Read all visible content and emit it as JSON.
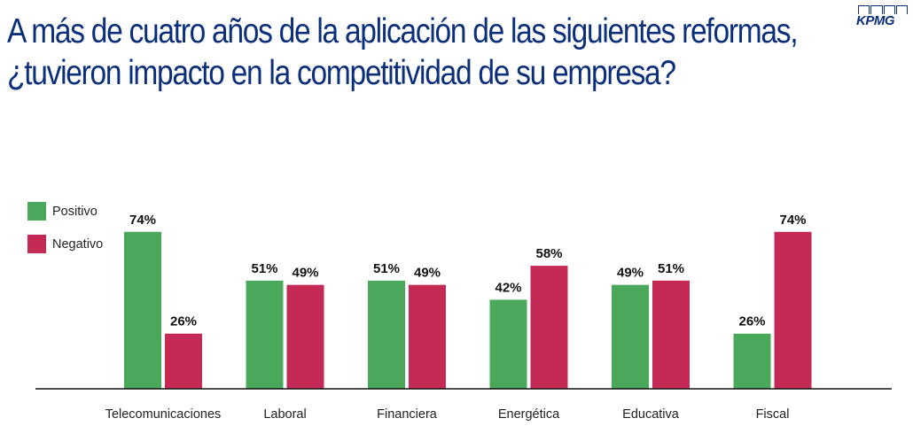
{
  "title": {
    "line1": "A más de cuatro años de la aplicación de las siguientes reformas,",
    "line2": "¿tuvieron impacto en la competitividad de su empresa?"
  },
  "logo": {
    "text": "KPMG"
  },
  "colors": {
    "positivo": "#4aa85a",
    "negativo": "#c42a55",
    "title": "#0b2f7a"
  },
  "chart_data": {
    "type": "bar",
    "categories": [
      "Telecomunicaciones",
      "Laboral",
      "Financiera",
      "Energética",
      "Educativa",
      "Fiscal"
    ],
    "series": [
      {
        "name": "Positivo",
        "values": [
          74,
          51,
          51,
          42,
          49,
          26
        ],
        "labels": [
          "74%",
          "51%",
          "51%",
          "42%",
          "49%",
          "26%"
        ]
      },
      {
        "name": "Negativo",
        "values": [
          26,
          49,
          49,
          58,
          51,
          74
        ],
        "labels": [
          "26%",
          "49%",
          "49%",
          "58%",
          "51%",
          "74%"
        ]
      }
    ],
    "ylim": [
      0,
      100
    ],
    "legend": "top-left",
    "grid": false
  }
}
